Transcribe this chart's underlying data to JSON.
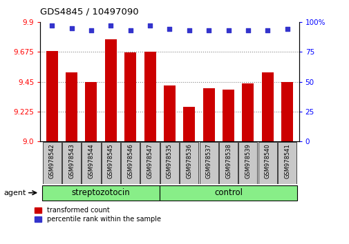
{
  "title": "GDS4845 / 10497090",
  "samples": [
    "GSM978542",
    "GSM978543",
    "GSM978544",
    "GSM978545",
    "GSM978546",
    "GSM978547",
    "GSM978535",
    "GSM978536",
    "GSM978537",
    "GSM978538",
    "GSM978539",
    "GSM978540",
    "GSM978541"
  ],
  "bar_values": [
    9.68,
    9.52,
    9.45,
    9.77,
    9.67,
    9.675,
    9.42,
    9.26,
    9.4,
    9.39,
    9.44,
    9.52,
    9.45
  ],
  "percentile_values": [
    97,
    95,
    93,
    97,
    93,
    97,
    94,
    93,
    93,
    93,
    93,
    93,
    94
  ],
  "ylim_left": [
    9.0,
    9.9
  ],
  "ylim_right": [
    0,
    100
  ],
  "yticks_left": [
    9.0,
    9.225,
    9.45,
    9.675,
    9.9
  ],
  "yticks_right": [
    0,
    25,
    50,
    75,
    100
  ],
  "bar_color": "#cc0000",
  "dot_color": "#3333cc",
  "group1_label": "streptozotocin",
  "group2_label": "control",
  "group1_count": 6,
  "group2_count": 7,
  "group_bar_color": "#88ee88",
  "tick_bg_color": "#c8c8c8",
  "legend_bar_label": "transformed count",
  "legend_dot_label": "percentile rank within the sample",
  "agent_label": "agent"
}
